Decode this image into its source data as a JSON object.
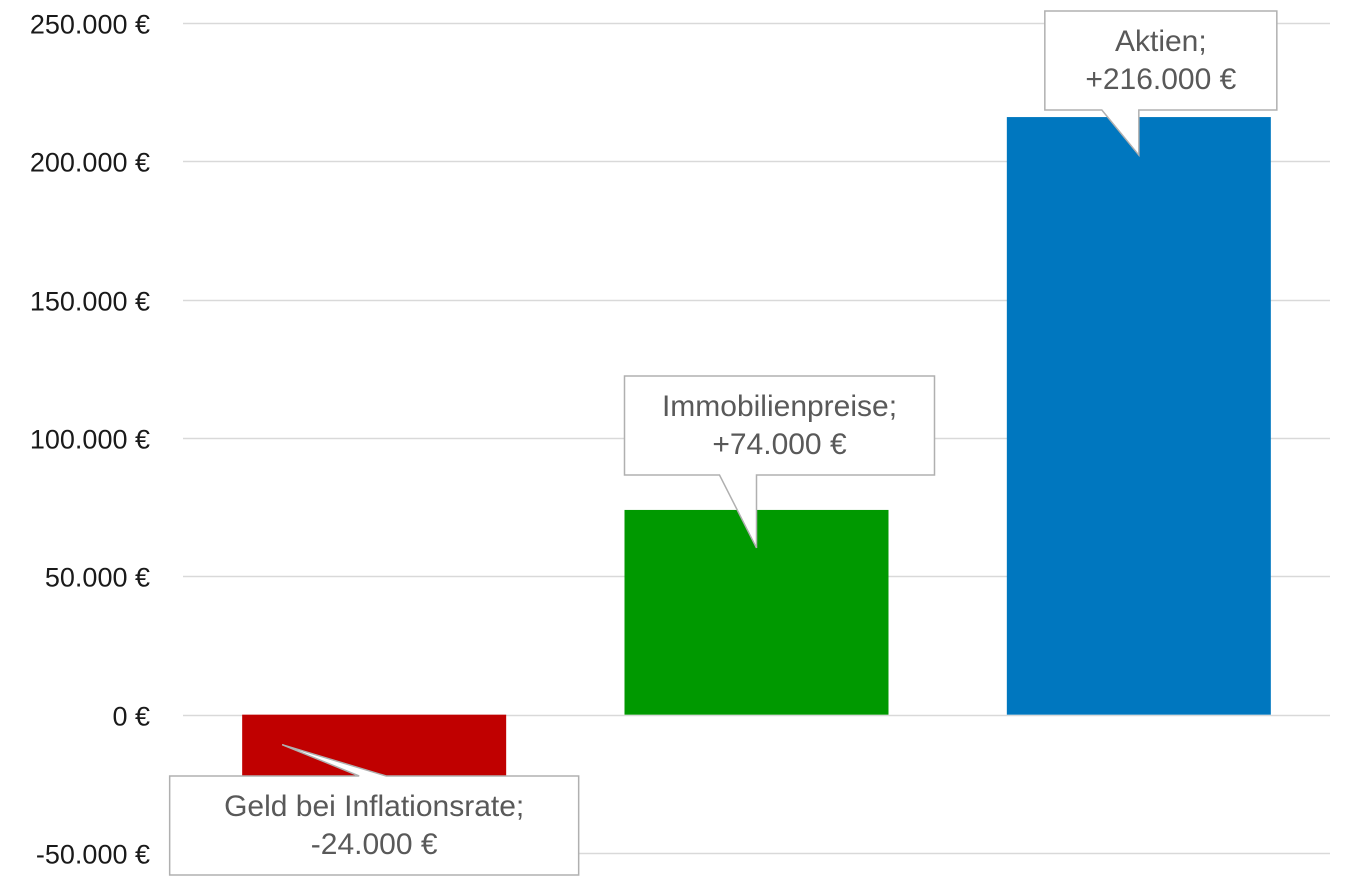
{
  "chart_data": {
    "type": "bar",
    "title": "",
    "xlabel": "",
    "ylabel": "",
    "ylim": [
      -50000,
      250000
    ],
    "yticks": [
      {
        "value": 250000,
        "label": "250.000 €"
      },
      {
        "value": 200000,
        "label": "200.000 €"
      },
      {
        "value": 150000,
        "label": "150.000 €"
      },
      {
        "value": 100000,
        "label": "100.000 €"
      },
      {
        "value": 50000,
        "label": "50.000 €"
      },
      {
        "value": 0,
        "label": "0 €"
      },
      {
        "value": -50000,
        "label": "-50.000 €"
      }
    ],
    "grid": true,
    "legend": "none",
    "categories": [
      "Geld bei Inflationsrate",
      "Immobilienpreise",
      "Aktien"
    ],
    "values": [
      -24000,
      74000,
      216000
    ],
    "colors": [
      "#c00000",
      "#009900",
      "#0077bf"
    ],
    "data_labels": [
      [
        "Geld bei Inflationsrate;",
        "-24.000 €"
      ],
      [
        "Immobilienpreise;",
        "+74.000 €"
      ],
      [
        "Aktien;",
        "+216.000 €"
      ]
    ]
  }
}
